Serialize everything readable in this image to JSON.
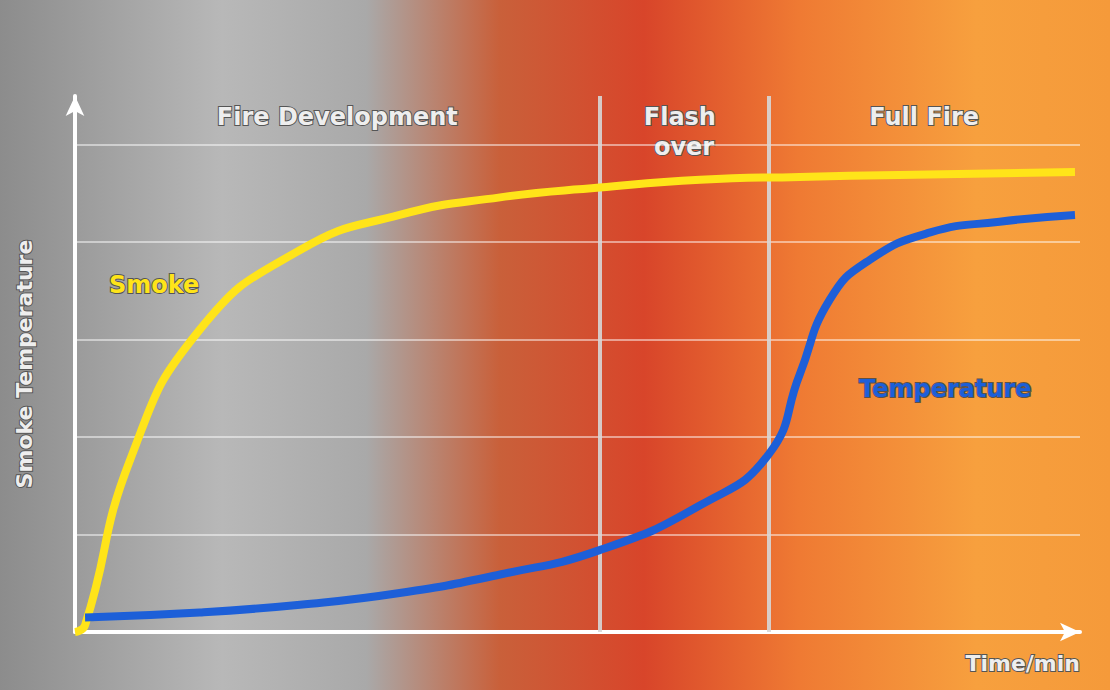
{
  "chart_data": {
    "type": "line",
    "y_label": "Smoke Temperature",
    "x_label": "Time/min",
    "xlim": [
      0,
      10
    ],
    "ylim": [
      0,
      5.5
    ],
    "yticks": [
      0,
      1,
      2,
      3,
      4,
      5
    ],
    "grid": true,
    "tick_labels": false,
    "phases": [
      {
        "label": "Fire Development",
        "start": 0,
        "end": 5.22
      },
      {
        "label": "Flash over",
        "start": 5.22,
        "end": 6.9
      },
      {
        "label": "Full Fire",
        "start": 6.9,
        "end": 10
      }
    ],
    "series": [
      {
        "name": "Smoke",
        "color": "#ffe419",
        "x": [
          0,
          0.1,
          0.55,
          1.24,
          2.24,
          3.23,
          4.23,
          5.22,
          6.22,
          7.21,
          8.2,
          9.95
        ],
        "values": [
          0,
          0.07,
          1.77,
          3.1,
          3.92,
          4.28,
          4.46,
          4.56,
          4.64,
          4.67,
          4.69,
          4.72
        ]
      },
      {
        "name": "Temperature",
        "color": "#1d5fd8",
        "x": [
          0.1,
          1.24,
          2.24,
          3.23,
          4.23,
          5.22,
          6.22,
          6.9,
          7.21,
          7.51,
          7.91,
          8.51,
          9.2,
          9.95
        ],
        "values": [
          0.15,
          0.2,
          0.28,
          0.4,
          0.59,
          0.84,
          1.3,
          1.82,
          2.64,
          3.41,
          3.82,
          4.1,
          4.21,
          4.28
        ]
      }
    ]
  }
}
